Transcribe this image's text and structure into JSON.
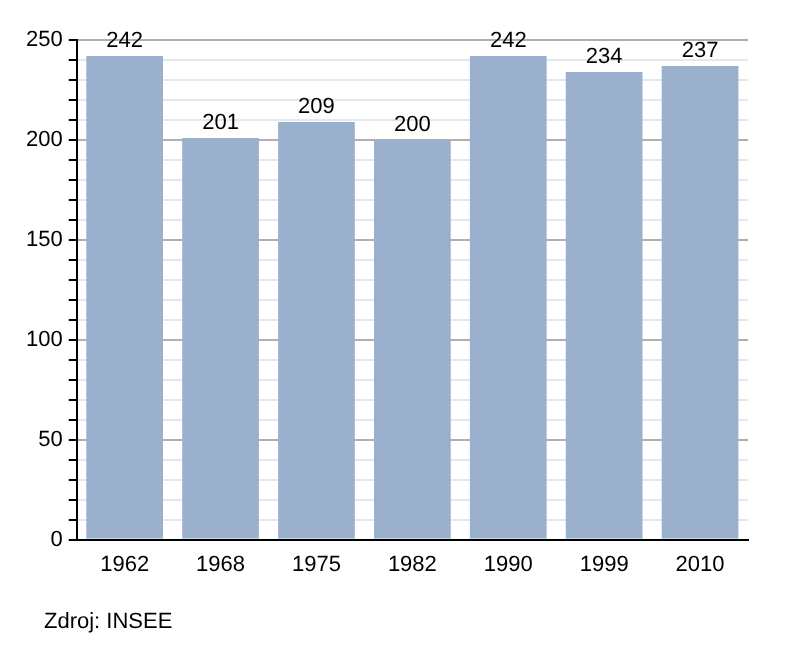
{
  "chart_data": {
    "type": "bar",
    "categories": [
      "1962",
      "1968",
      "1975",
      "1982",
      "1990",
      "1999",
      "2010"
    ],
    "values": [
      242,
      201,
      209,
      200,
      242,
      234,
      237
    ],
    "color": "#9ab0cc",
    "data_labels": true,
    "ylim": [
      0,
      250
    ],
    "yticks": [
      0,
      {
        "value": 10,
        "label": null
      },
      {
        "value": 20,
        "label": null
      },
      {
        "value": 30,
        "label": null
      },
      {
        "value": 40,
        "label": null
      },
      50,
      {
        "value": 60,
        "label": null
      },
      {
        "value": 70,
        "label": null
      },
      {
        "value": 80,
        "label": null
      },
      {
        "value": 90,
        "label": null
      },
      100,
      {
        "value": 110,
        "label": null
      },
      {
        "value": 120,
        "label": null
      },
      {
        "value": 130,
        "label": null
      },
      {
        "value": 140,
        "label": null
      },
      150,
      {
        "value": 160,
        "label": null
      },
      {
        "value": 170,
        "label": null
      },
      {
        "value": 180,
        "label": null
      },
      {
        "value": 190,
        "label": null
      },
      200,
      {
        "value": 210,
        "label": null
      },
      {
        "value": 220,
        "label": null
      },
      {
        "value": 230,
        "label": null
      },
      {
        "value": 240,
        "label": null
      },
      250
    ],
    "grid": "y",
    "legend": false,
    "annotations": [
      "Zdroj: INSEE"
    ]
  }
}
